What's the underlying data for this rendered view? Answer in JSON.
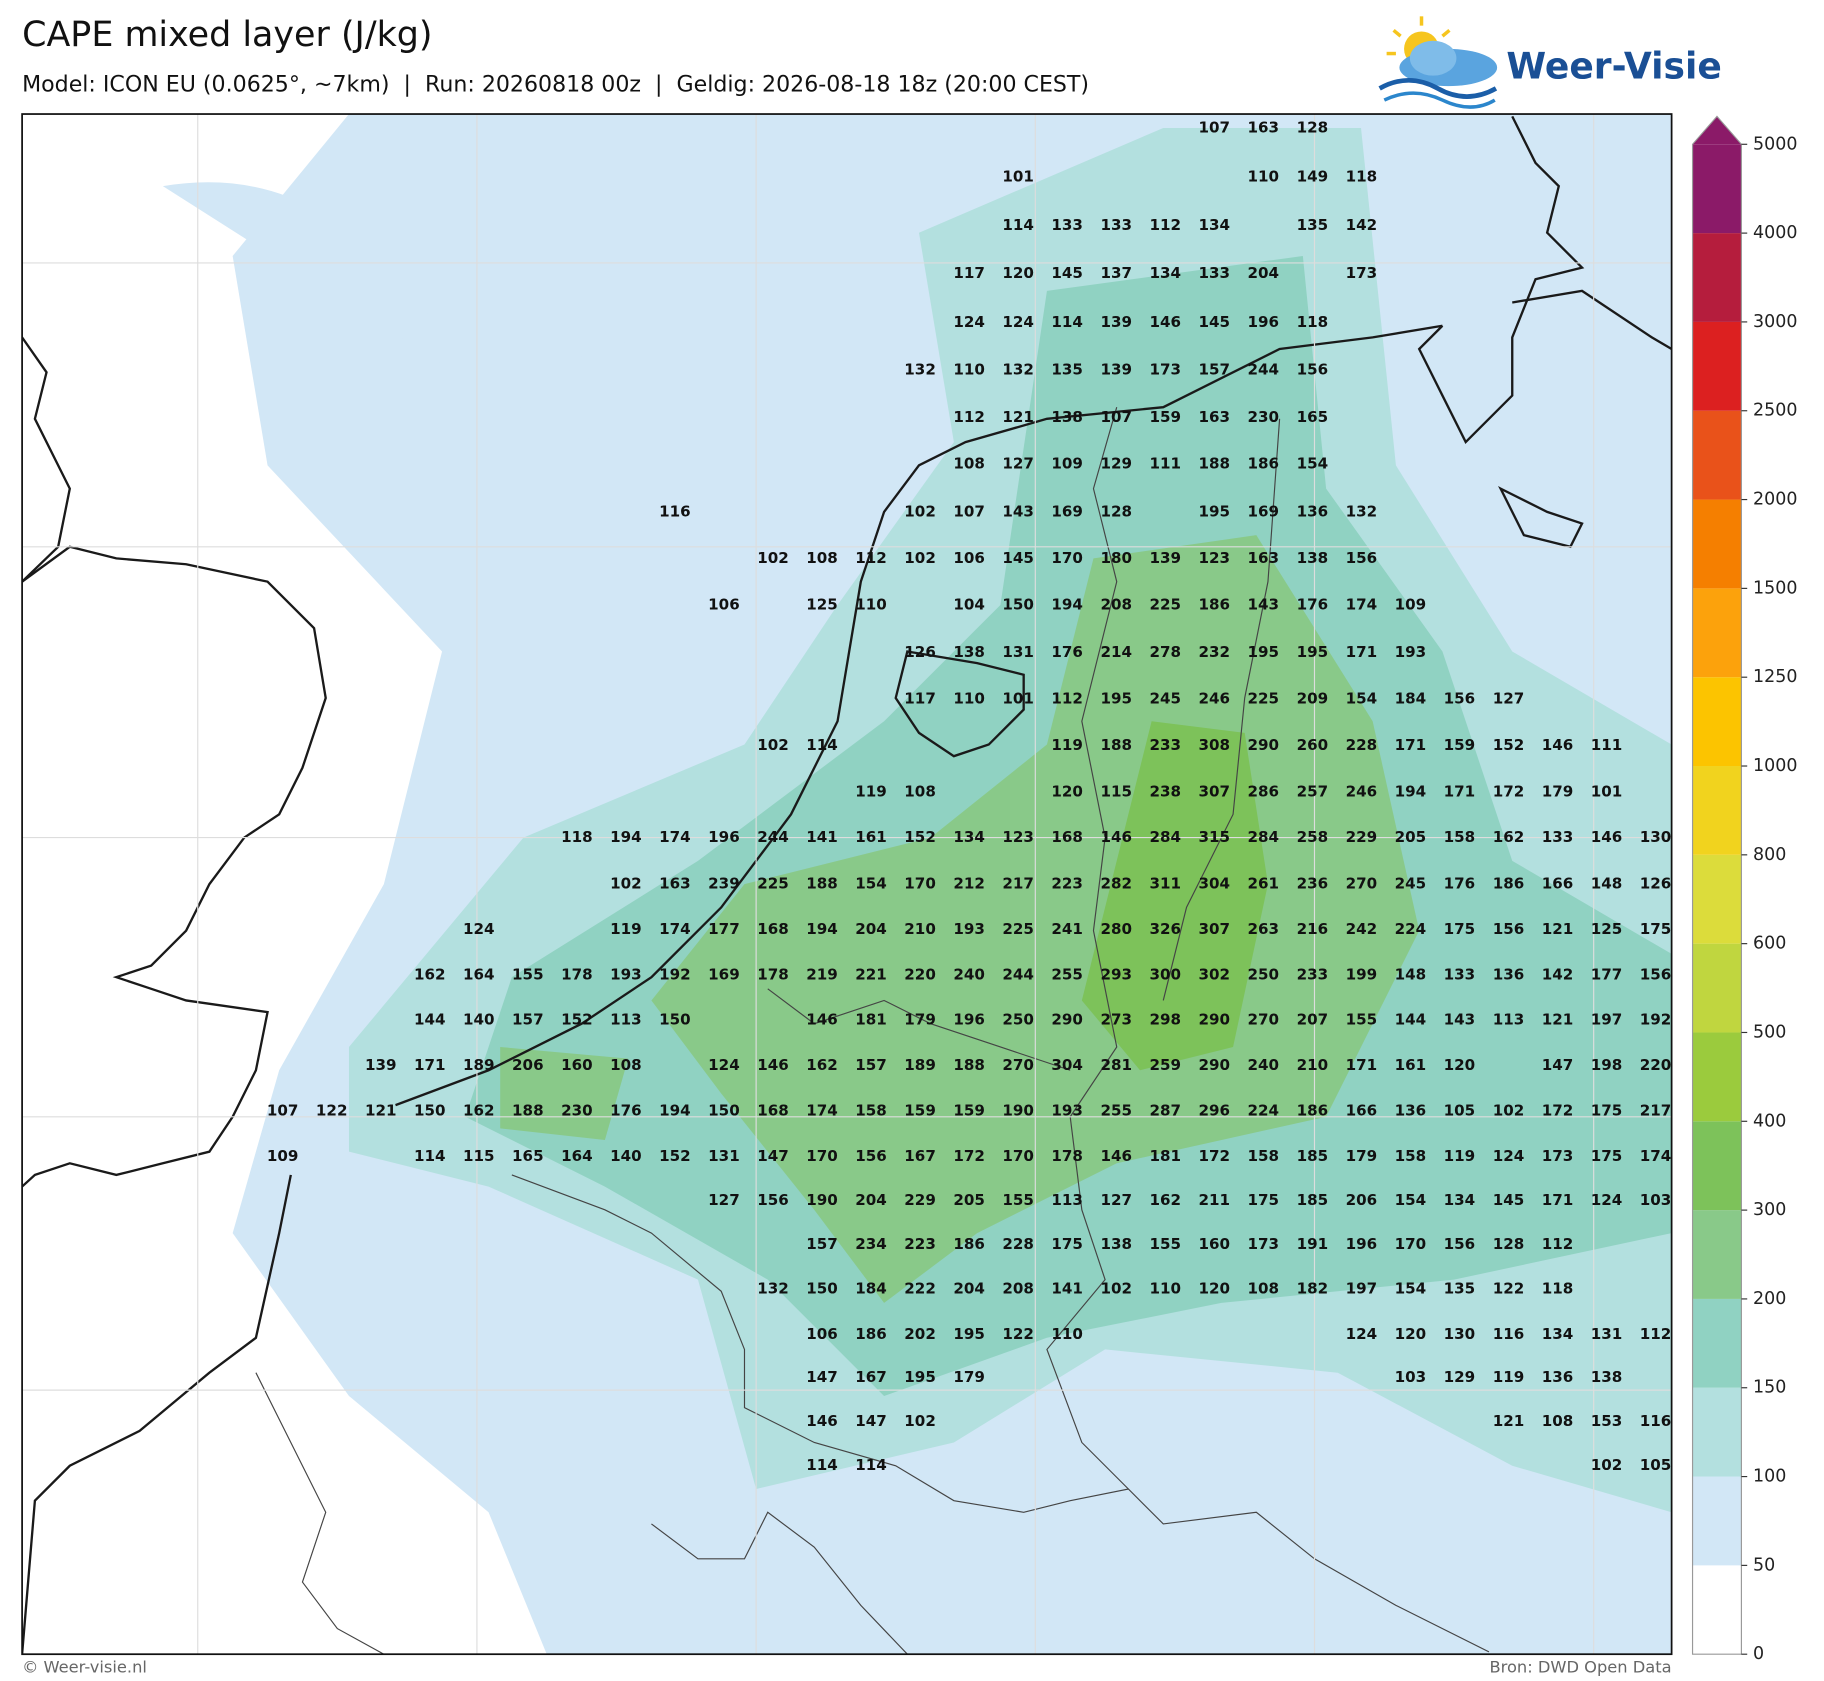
{
  "header": {
    "title": "CAPE mixed layer (J/kg)",
    "subtitle": "Model: ICON EU (0.0625°, ~7km)  |  Run: 20260818 00z  |  Geldig: 2026-08-18 18z (20:00 CEST)",
    "logo": "Weer-Visie"
  },
  "colorbar": {
    "ticks": [
      0,
      50,
      100,
      150,
      200,
      300,
      400,
      500,
      600,
      800,
      1000,
      1250,
      1500,
      2000,
      2500,
      3000,
      4000,
      5000
    ],
    "colors": [
      "#ffffff",
      "#d2e7f6",
      "#b3e0df",
      "#90d2c2",
      "#89c989",
      "#7dc25a",
      "#9bcb3d",
      "#c0d63f",
      "#dcdc3b",
      "#f1d31e",
      "#fcc400",
      "#fca20c",
      "#f57f00",
      "#e9521a",
      "#dc2020",
      "#b51d3d",
      "#8b1a68"
    ],
    "extend_color": "#8b1a68"
  },
  "grid_labels": [
    [
      null,
      null,
      null,
      null,
      null,
      null,
      null,
      null,
      null,
      null,
      null,
      null,
      null,
      null,
      null,
      null,
      null,
      null,
      null,
      107,
      163,
      128,
      null,
      null,
      null,
      null,
      null,
      null,
      null
    ],
    [
      null,
      null,
      null,
      null,
      null,
      null,
      null,
      null,
      null,
      null,
      null,
      null,
      null,
      null,
      null,
      101,
      null,
      null,
      null,
      null,
      110,
      149,
      118,
      null,
      null,
      null,
      null,
      null,
      null
    ],
    [
      null,
      null,
      null,
      null,
      null,
      null,
      null,
      null,
      null,
      null,
      null,
      null,
      null,
      null,
      null,
      114,
      133,
      133,
      112,
      134,
      null,
      135,
      142,
      null,
      null,
      null,
      null,
      null,
      null
    ],
    [
      null,
      null,
      null,
      null,
      null,
      null,
      null,
      null,
      null,
      null,
      null,
      null,
      null,
      null,
      117,
      120,
      145,
      137,
      134,
      133,
      204,
      null,
      173,
      null,
      null,
      null,
      null,
      null,
      null
    ],
    [
      null,
      null,
      null,
      null,
      null,
      null,
      null,
      null,
      null,
      null,
      null,
      null,
      null,
      null,
      124,
      124,
      114,
      139,
      146,
      145,
      196,
      118,
      null,
      null,
      null,
      null,
      null,
      null,
      null
    ],
    [
      null,
      null,
      null,
      null,
      null,
      null,
      null,
      null,
      null,
      null,
      null,
      null,
      null,
      132,
      110,
      132,
      135,
      139,
      173,
      157,
      244,
      156,
      null,
      null,
      null,
      null,
      null,
      null,
      null
    ],
    [
      null,
      null,
      null,
      null,
      null,
      null,
      null,
      null,
      null,
      null,
      null,
      null,
      null,
      null,
      112,
      121,
      138,
      107,
      159,
      163,
      230,
      165,
      null,
      null,
      null,
      null,
      null,
      null,
      null
    ],
    [
      null,
      null,
      null,
      null,
      null,
      null,
      null,
      null,
      null,
      null,
      null,
      null,
      null,
      null,
      108,
      127,
      109,
      129,
      111,
      188,
      186,
      154,
      null,
      null,
      null,
      null,
      null,
      null,
      null
    ],
    [
      null,
      null,
      null,
      null,
      null,
      null,
      null,
      null,
      116,
      null,
      null,
      null,
      null,
      102,
      107,
      143,
      169,
      128,
      null,
      195,
      169,
      136,
      132,
      null,
      null,
      null,
      null,
      null,
      null
    ],
    [
      null,
      null,
      null,
      null,
      null,
      null,
      null,
      null,
      null,
      null,
      102,
      108,
      112,
      102,
      106,
      145,
      170,
      180,
      139,
      123,
      163,
      138,
      156,
      null,
      null,
      null,
      null,
      null,
      null
    ],
    [
      null,
      null,
      null,
      null,
      null,
      null,
      null,
      null,
      null,
      106,
      null,
      125,
      110,
      null,
      104,
      150,
      194,
      208,
      225,
      186,
      143,
      176,
      174,
      109,
      null,
      null,
      null,
      null,
      null
    ],
    [
      null,
      null,
      null,
      null,
      null,
      null,
      null,
      null,
      null,
      null,
      null,
      null,
      null,
      126,
      138,
      131,
      176,
      214,
      278,
      232,
      195,
      195,
      171,
      193,
      null,
      null,
      null,
      null,
      null
    ],
    [
      null,
      null,
      null,
      null,
      null,
      null,
      null,
      null,
      null,
      null,
      null,
      null,
      null,
      117,
      110,
      101,
      112,
      195,
      245,
      246,
      225,
      209,
      154,
      184,
      156,
      127,
      null,
      null,
      null
    ],
    [
      null,
      null,
      null,
      null,
      null,
      null,
      null,
      null,
      null,
      null,
      102,
      114,
      null,
      null,
      null,
      null,
      119,
      188,
      233,
      308,
      290,
      260,
      228,
      171,
      159,
      152,
      146,
      111,
      null
    ],
    [
      null,
      null,
      null,
      null,
      null,
      null,
      null,
      null,
      null,
      null,
      null,
      null,
      119,
      108,
      null,
      null,
      120,
      115,
      238,
      307,
      286,
      257,
      246,
      194,
      171,
      172,
      179,
      101,
      null
    ],
    [
      null,
      null,
      null,
      null,
      null,
      null,
      118,
      194,
      174,
      196,
      244,
      141,
      161,
      152,
      134,
      123,
      168,
      146,
      284,
      315,
      284,
      258,
      229,
      205,
      158,
      162,
      133,
      146,
      130
    ],
    [
      null,
      null,
      null,
      null,
      null,
      null,
      null,
      102,
      163,
      239,
      225,
      188,
      154,
      170,
      212,
      217,
      223,
      282,
      311,
      304,
      261,
      236,
      270,
      245,
      176,
      186,
      166,
      148,
      126
    ],
    [
      null,
      null,
      null,
      null,
      124,
      null,
      null,
      119,
      174,
      177,
      168,
      194,
      204,
      210,
      193,
      225,
      241,
      280,
      326,
      307,
      263,
      216,
      242,
      224,
      175,
      156,
      121,
      125,
      175
    ],
    [
      null,
      null,
      null,
      162,
      164,
      155,
      178,
      193,
      192,
      169,
      178,
      219,
      221,
      220,
      240,
      244,
      255,
      293,
      300,
      302,
      250,
      233,
      199,
      148,
      133,
      136,
      142,
      177,
      156
    ],
    [
      null,
      null,
      null,
      144,
      140,
      157,
      152,
      113,
      150,
      null,
      null,
      146,
      181,
      179,
      196,
      250,
      290,
      273,
      298,
      290,
      270,
      207,
      155,
      144,
      143,
      113,
      121,
      197,
      192
    ],
    [
      null,
      null,
      139,
      171,
      189,
      206,
      160,
      108,
      null,
      124,
      146,
      162,
      157,
      189,
      188,
      270,
      304,
      281,
      259,
      290,
      240,
      210,
      171,
      161,
      120,
      null,
      147,
      198,
      220
    ],
    [
      107,
      122,
      121,
      150,
      162,
      188,
      230,
      176,
      194,
      150,
      168,
      174,
      158,
      159,
      159,
      190,
      193,
      255,
      287,
      296,
      224,
      186,
      166,
      136,
      105,
      102,
      172,
      175,
      217
    ],
    [
      109,
      null,
      null,
      114,
      115,
      165,
      164,
      140,
      152,
      131,
      147,
      170,
      156,
      167,
      172,
      170,
      178,
      146,
      181,
      172,
      158,
      185,
      179,
      158,
      119,
      124,
      173,
      175,
      174
    ],
    [
      null,
      null,
      null,
      null,
      null,
      null,
      null,
      null,
      null,
      127,
      156,
      190,
      204,
      229,
      205,
      155,
      113,
      127,
      162,
      211,
      175,
      185,
      206,
      154,
      134,
      145,
      171,
      124,
      103
    ],
    [
      null,
      null,
      null,
      null,
      null,
      null,
      null,
      null,
      null,
      null,
      null,
      157,
      234,
      223,
      186,
      228,
      175,
      138,
      155,
      160,
      173,
      191,
      196,
      170,
      156,
      128,
      112,
      null,
      null
    ],
    [
      null,
      null,
      null,
      null,
      null,
      null,
      null,
      null,
      null,
      null,
      132,
      150,
      184,
      222,
      204,
      208,
      141,
      102,
      110,
      120,
      108,
      182,
      197,
      154,
      135,
      122,
      118,
      null,
      null
    ],
    [
      null,
      null,
      null,
      null,
      null,
      null,
      null,
      null,
      null,
      null,
      null,
      106,
      186,
      202,
      195,
      122,
      110,
      null,
      null,
      null,
      null,
      null,
      124,
      120,
      130,
      116,
      134,
      131,
      112
    ],
    [
      null,
      null,
      null,
      null,
      null,
      null,
      null,
      null,
      null,
      null,
      null,
      147,
      167,
      195,
      179,
      null,
      null,
      null,
      null,
      null,
      null,
      null,
      null,
      103,
      129,
      119,
      136,
      138,
      null
    ],
    [
      null,
      null,
      null,
      null,
      null,
      null,
      null,
      null,
      null,
      null,
      null,
      146,
      147,
      102,
      null,
      null,
      null,
      null,
      null,
      null,
      null,
      null,
      null,
      null,
      null,
      121,
      108,
      153,
      116
    ],
    [
      null,
      null,
      null,
      null,
      null,
      null,
      null,
      null,
      null,
      null,
      null,
      114,
      114,
      null,
      null,
      null,
      null,
      null,
      null,
      null,
      null,
      null,
      null,
      null,
      null,
      null,
      null,
      102,
      105
    ]
  ],
  "footer": {
    "left": "© Weer-visie.nl",
    "right": "Bron: DWD Open Data"
  }
}
